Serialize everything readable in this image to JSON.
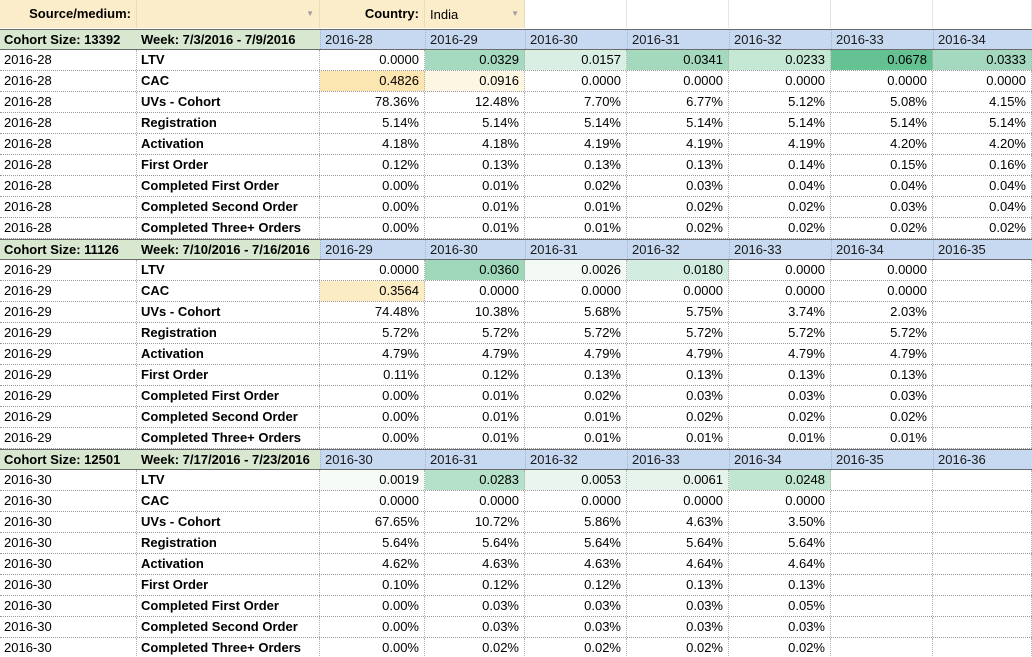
{
  "controls": {
    "source_medium_label": "Source/medium:",
    "source_medium_value": "",
    "country_label": "Country:",
    "country_value": "India",
    "dropdown_icon": "▼"
  },
  "colors": {
    "control_bg": "#fcedca",
    "header_green": "#d8e7d0",
    "header_blue": "#c7d9f0",
    "grid_line": "#999999",
    "ltv_green_max": "#63c192",
    "cac_orange_max": "#fbe5b0"
  },
  "cohorts": [
    {
      "size_label": "Cohort Size: 13392",
      "week_label": "Week: 7/3/2016 - 7/9/2016",
      "row_label": "2016-28",
      "columns": [
        "2016-28",
        "2016-29",
        "2016-30",
        "2016-31",
        "2016-32",
        "2016-33",
        "2016-34"
      ],
      "rows": [
        {
          "metric": "LTV",
          "values": [
            "0.0000",
            "0.0329",
            "0.0157",
            "0.0341",
            "0.0233",
            "0.0678",
            "0.0333"
          ],
          "bg": [
            "",
            "#a6dac0",
            "#d9efe3",
            "#a4d9be",
            "#c5e8d5",
            "#63c192",
            "#a5d9bf"
          ]
        },
        {
          "metric": "CAC",
          "values": [
            "0.4826",
            "0.0916",
            "0.0000",
            "0.0000",
            "0.0000",
            "0.0000",
            "0.0000"
          ],
          "bg": [
            "#fbe5b0",
            "#fdf6e3",
            "",
            "",
            "",
            "",
            ""
          ]
        },
        {
          "metric": "UVs - Cohort",
          "values": [
            "78.36%",
            "12.48%",
            "7.70%",
            "6.77%",
            "5.12%",
            "5.08%",
            "4.15%"
          ]
        },
        {
          "metric": "Registration",
          "values": [
            "5.14%",
            "5.14%",
            "5.14%",
            "5.14%",
            "5.14%",
            "5.14%",
            "5.14%"
          ]
        },
        {
          "metric": "Activation",
          "values": [
            "4.18%",
            "4.18%",
            "4.19%",
            "4.19%",
            "4.19%",
            "4.20%",
            "4.20%"
          ]
        },
        {
          "metric": "First Order",
          "values": [
            "0.12%",
            "0.13%",
            "0.13%",
            "0.13%",
            "0.14%",
            "0.15%",
            "0.16%"
          ]
        },
        {
          "metric": "Completed First Order",
          "values": [
            "0.00%",
            "0.01%",
            "0.02%",
            "0.03%",
            "0.04%",
            "0.04%",
            "0.04%"
          ]
        },
        {
          "metric": "Completed Second Order",
          "values": [
            "0.00%",
            "0.01%",
            "0.01%",
            "0.02%",
            "0.02%",
            "0.03%",
            "0.04%"
          ]
        },
        {
          "metric": "Completed Three+ Orders",
          "values": [
            "0.00%",
            "0.01%",
            "0.01%",
            "0.02%",
            "0.02%",
            "0.02%",
            "0.02%"
          ]
        }
      ]
    },
    {
      "size_label": "Cohort Size: 11126",
      "week_label": "Week: 7/10/2016 - 7/16/2016",
      "row_label": "2016-29",
      "columns": [
        "2016-29",
        "2016-30",
        "2016-31",
        "2016-32",
        "2016-33",
        "2016-34",
        "2016-35"
      ],
      "rows": [
        {
          "metric": "LTV",
          "values": [
            "0.0000",
            "0.0360",
            "0.0026",
            "0.0180",
            "0.0000",
            "0.0000",
            ""
          ],
          "bg": [
            "",
            "#9fd7bb",
            "#f3faf6",
            "#d2ecdf",
            "",
            "",
            ""
          ]
        },
        {
          "metric": "CAC",
          "values": [
            "0.3564",
            "0.0000",
            "0.0000",
            "0.0000",
            "0.0000",
            "0.0000",
            ""
          ],
          "bg": [
            "#fcecc4",
            "",
            "",
            "",
            "",
            "",
            ""
          ]
        },
        {
          "metric": "UVs - Cohort",
          "values": [
            "74.48%",
            "10.38%",
            "5.68%",
            "5.75%",
            "3.74%",
            "2.03%",
            ""
          ]
        },
        {
          "metric": "Registration",
          "values": [
            "5.72%",
            "5.72%",
            "5.72%",
            "5.72%",
            "5.72%",
            "5.72%",
            ""
          ]
        },
        {
          "metric": "Activation",
          "values": [
            "4.79%",
            "4.79%",
            "4.79%",
            "4.79%",
            "4.79%",
            "4.79%",
            ""
          ]
        },
        {
          "metric": "First Order",
          "values": [
            "0.11%",
            "0.12%",
            "0.13%",
            "0.13%",
            "0.13%",
            "0.13%",
            ""
          ]
        },
        {
          "metric": "Completed First Order",
          "values": [
            "0.00%",
            "0.01%",
            "0.02%",
            "0.03%",
            "0.03%",
            "0.03%",
            ""
          ]
        },
        {
          "metric": "Completed Second Order",
          "values": [
            "0.00%",
            "0.01%",
            "0.01%",
            "0.02%",
            "0.02%",
            "0.02%",
            ""
          ]
        },
        {
          "metric": "Completed Three+ Orders",
          "values": [
            "0.00%",
            "0.01%",
            "0.01%",
            "0.01%",
            "0.01%",
            "0.01%",
            ""
          ]
        }
      ]
    },
    {
      "size_label": "Cohort Size: 12501",
      "week_label": "Week: 7/17/2016 - 7/23/2016",
      "row_label": "2016-30",
      "columns": [
        "2016-30",
        "2016-31",
        "2016-32",
        "2016-33",
        "2016-34",
        "2016-35",
        "2016-36"
      ],
      "rows": [
        {
          "metric": "LTV",
          "values": [
            "0.0019",
            "0.0283",
            "0.0053",
            "0.0061",
            "0.0248",
            "",
            ""
          ],
          "bg": [
            "#f6fbf8",
            "#b5e0c9",
            "#e9f5ee",
            "#e7f4ec",
            "#c0e5d1",
            "",
            ""
          ]
        },
        {
          "metric": "CAC",
          "values": [
            "0.0000",
            "0.0000",
            "0.0000",
            "0.0000",
            "0.0000",
            "",
            ""
          ]
        },
        {
          "metric": "UVs - Cohort",
          "values": [
            "67.65%",
            "10.72%",
            "5.86%",
            "4.63%",
            "3.50%",
            "",
            ""
          ]
        },
        {
          "metric": "Registration",
          "values": [
            "5.64%",
            "5.64%",
            "5.64%",
            "5.64%",
            "5.64%",
            "",
            ""
          ]
        },
        {
          "metric": "Activation",
          "values": [
            "4.62%",
            "4.63%",
            "4.63%",
            "4.64%",
            "4.64%",
            "",
            ""
          ]
        },
        {
          "metric": "First Order",
          "values": [
            "0.10%",
            "0.12%",
            "0.12%",
            "0.13%",
            "0.13%",
            "",
            ""
          ]
        },
        {
          "metric": "Completed First Order",
          "values": [
            "0.00%",
            "0.03%",
            "0.03%",
            "0.03%",
            "0.05%",
            "",
            ""
          ]
        },
        {
          "metric": "Completed Second Order",
          "values": [
            "0.00%",
            "0.03%",
            "0.03%",
            "0.03%",
            "0.03%",
            "",
            ""
          ]
        },
        {
          "metric": "Completed Three+ Orders",
          "values": [
            "0.00%",
            "0.02%",
            "0.02%",
            "0.02%",
            "0.02%",
            "",
            ""
          ]
        }
      ]
    }
  ]
}
